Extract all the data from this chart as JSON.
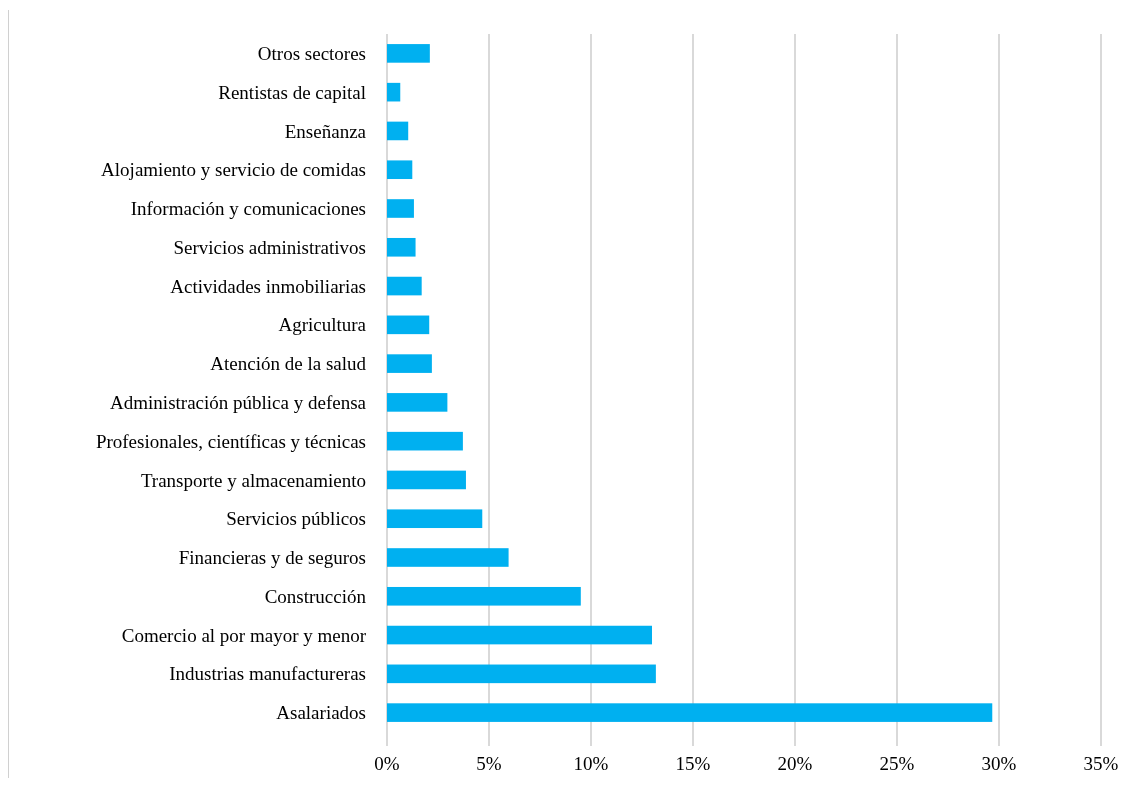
{
  "chart_data": {
    "type": "bar",
    "orientation": "horizontal",
    "categories": [
      "Otros sectores",
      "Rentistas de capital",
      "Enseñanza",
      "Alojamiento y servicio de comidas",
      "Información y comunicaciones",
      "Servicios administrativos",
      "Actividades inmobiliarias",
      "Agricultura",
      "Atención de la salud",
      "Administración pública y defensa",
      "Profesionales, científicas y técnicas",
      "Transporte y almacenamiento",
      "Servicios públicos",
      "Financieras y de seguros",
      "Construcción",
      "Comercio al por mayor y menor",
      "Industrias manufactureras",
      "Asalariados"
    ],
    "values": [
      2.1,
      0.65,
      1.04,
      1.24,
      1.32,
      1.4,
      1.7,
      2.07,
      2.2,
      2.96,
      3.72,
      3.87,
      4.67,
      5.96,
      9.5,
      12.99,
      13.18,
      29.67
    ],
    "color": "#00b0f0",
    "xlim": [
      0,
      35
    ],
    "xticks": [
      {
        "value": 0,
        "label": "0%"
      },
      {
        "value": 5,
        "label": "5%"
      },
      {
        "value": 10,
        "label": "10%"
      },
      {
        "value": 15,
        "label": "15%"
      },
      {
        "value": 20,
        "label": "20%"
      },
      {
        "value": 25,
        "label": "25%"
      },
      {
        "value": 30,
        "label": "30%"
      },
      {
        "value": 35,
        "label": "35%"
      }
    ],
    "grid": "x"
  }
}
